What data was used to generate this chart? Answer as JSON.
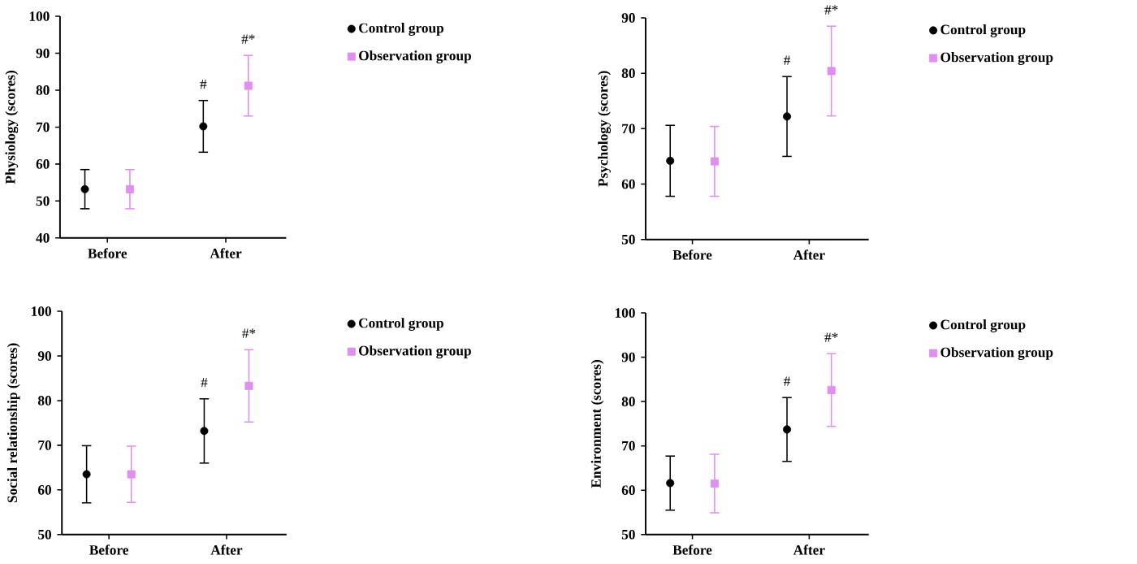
{
  "chart_data": [
    {
      "type": "scatter",
      "ylabel": "Physiology (scores)",
      "categories": [
        "Before",
        "After"
      ],
      "ylim": [
        40,
        100
      ],
      "yticks": [
        40,
        50,
        60,
        70,
        80,
        90,
        100
      ],
      "legend": "right",
      "series": [
        {
          "name": "Control group",
          "color": "#000000",
          "marker": "circle",
          "values": [
            53.2,
            70.2
          ],
          "errors": [
            5.3,
            7
          ]
        },
        {
          "name": "Observation group",
          "color": "#e08ef0",
          "marker": "square",
          "values": [
            53.2,
            81.2
          ],
          "errors": [
            5.3,
            8.2
          ]
        }
      ],
      "annotations": [
        "#",
        "#*"
      ]
    },
    {
      "type": "scatter",
      "ylabel": "Psychology (scores)",
      "categories": [
        "Before",
        "After"
      ],
      "ylim": [
        50,
        90
      ],
      "yticks": [
        50,
        60,
        70,
        80,
        90
      ],
      "legend": "right",
      "series": [
        {
          "name": "Control group",
          "color": "#000000",
          "marker": "circle",
          "values": [
            64.2,
            72.2
          ],
          "errors": [
            6.4,
            7.2
          ]
        },
        {
          "name": "Observation group",
          "color": "#e08ef0",
          "marker": "square",
          "values": [
            64.1,
            80.4
          ],
          "errors": [
            6.3,
            8.1
          ]
        }
      ],
      "annotations": [
        "#",
        "#*"
      ]
    },
    {
      "type": "scatter",
      "ylabel": "Social relationship (scores)",
      "categories": [
        "Before",
        "After"
      ],
      "ylim": [
        50,
        100
      ],
      "yticks": [
        50,
        60,
        70,
        80,
        90,
        100
      ],
      "legend": "right",
      "series": [
        {
          "name": "Control group",
          "color": "#000000",
          "marker": "circle",
          "values": [
            63.5,
            73.2
          ],
          "errors": [
            6.4,
            7.2
          ]
        },
        {
          "name": "Observation group",
          "color": "#e08ef0",
          "marker": "square",
          "values": [
            63.5,
            83.3
          ],
          "errors": [
            6.3,
            8.1
          ]
        }
      ],
      "annotations": [
        "#",
        "#*"
      ]
    },
    {
      "type": "scatter",
      "ylabel": "Environment (scores)",
      "categories": [
        "Before",
        "After"
      ],
      "ylim": [
        50,
        100
      ],
      "yticks": [
        50,
        60,
        70,
        80,
        90,
        100
      ],
      "legend": "right",
      "series": [
        {
          "name": "Control group",
          "color": "#000000",
          "marker": "circle",
          "values": [
            61.6,
            73.7
          ],
          "errors": [
            6.1,
            7.2
          ]
        },
        {
          "name": "Observation group",
          "color": "#e08ef0",
          "marker": "square",
          "values": [
            61.5,
            82.6
          ],
          "errors": [
            6.6,
            8.2
          ]
        }
      ],
      "annotations": [
        "#",
        "#*"
      ]
    }
  ]
}
